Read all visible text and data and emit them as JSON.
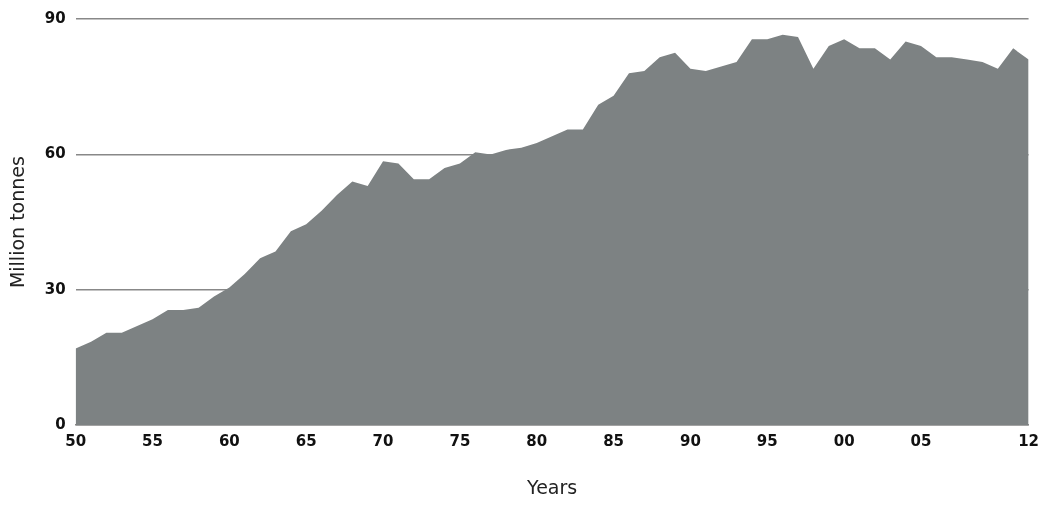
{
  "chart_data": {
    "type": "area",
    "xlabel": "Years",
    "ylabel": "Million tonnes",
    "x": [
      1950,
      1951,
      1952,
      1953,
      1954,
      1955,
      1956,
      1957,
      1958,
      1959,
      1960,
      1961,
      1962,
      1963,
      1964,
      1965,
      1966,
      1967,
      1968,
      1969,
      1970,
      1971,
      1972,
      1973,
      1974,
      1975,
      1976,
      1977,
      1978,
      1979,
      1980,
      1981,
      1982,
      1983,
      1984,
      1985,
      1986,
      1987,
      1988,
      1989,
      1990,
      1991,
      1992,
      1993,
      1994,
      1995,
      1996,
      1997,
      1998,
      1999,
      2000,
      2001,
      2002,
      2003,
      2004,
      2005,
      2006,
      2007,
      2008,
      2009,
      2010,
      2011,
      2012
    ],
    "series": [
      {
        "color": "#7d8283",
        "values": [
          17,
          18.5,
          20.5,
          20.5,
          22,
          23.5,
          25.5,
          25.5,
          26,
          28.5,
          30.5,
          33.5,
          37,
          38.5,
          43,
          44.5,
          47.5,
          51,
          54,
          53,
          58.5,
          58,
          54.5,
          54.5,
          57,
          58,
          60.5,
          60,
          61,
          61.5,
          62.5,
          64,
          65.5,
          65.5,
          71,
          73,
          78,
          78.5,
          81.5,
          82.5,
          79,
          78.5,
          79.5,
          80.5,
          85.5,
          85.5,
          86.5,
          86,
          79,
          84,
          85.5,
          83.5,
          83.5,
          81,
          85,
          84,
          81.5,
          81.5,
          81,
          80.5,
          79,
          83.5,
          81
        ]
      }
    ],
    "xlim": [
      1950,
      2012
    ],
    "xticks": [
      {
        "value": 1950,
        "label": "50"
      },
      {
        "value": 1955,
        "label": "55"
      },
      {
        "value": 1960,
        "label": "60"
      },
      {
        "value": 1965,
        "label": "65"
      },
      {
        "value": 1970,
        "label": "70"
      },
      {
        "value": 1975,
        "label": "75"
      },
      {
        "value": 1980,
        "label": "80"
      },
      {
        "value": 1985,
        "label": "85"
      },
      {
        "value": 1990,
        "label": "90"
      },
      {
        "value": 1995,
        "label": "95"
      },
      {
        "value": 2000,
        "label": "00"
      },
      {
        "value": 2005,
        "label": "05"
      },
      {
        "value": 2012,
        "label": "12"
      }
    ],
    "ylim": [
      0,
      90
    ],
    "yticks": [
      0,
      30,
      60,
      90
    ],
    "grid": "y"
  }
}
